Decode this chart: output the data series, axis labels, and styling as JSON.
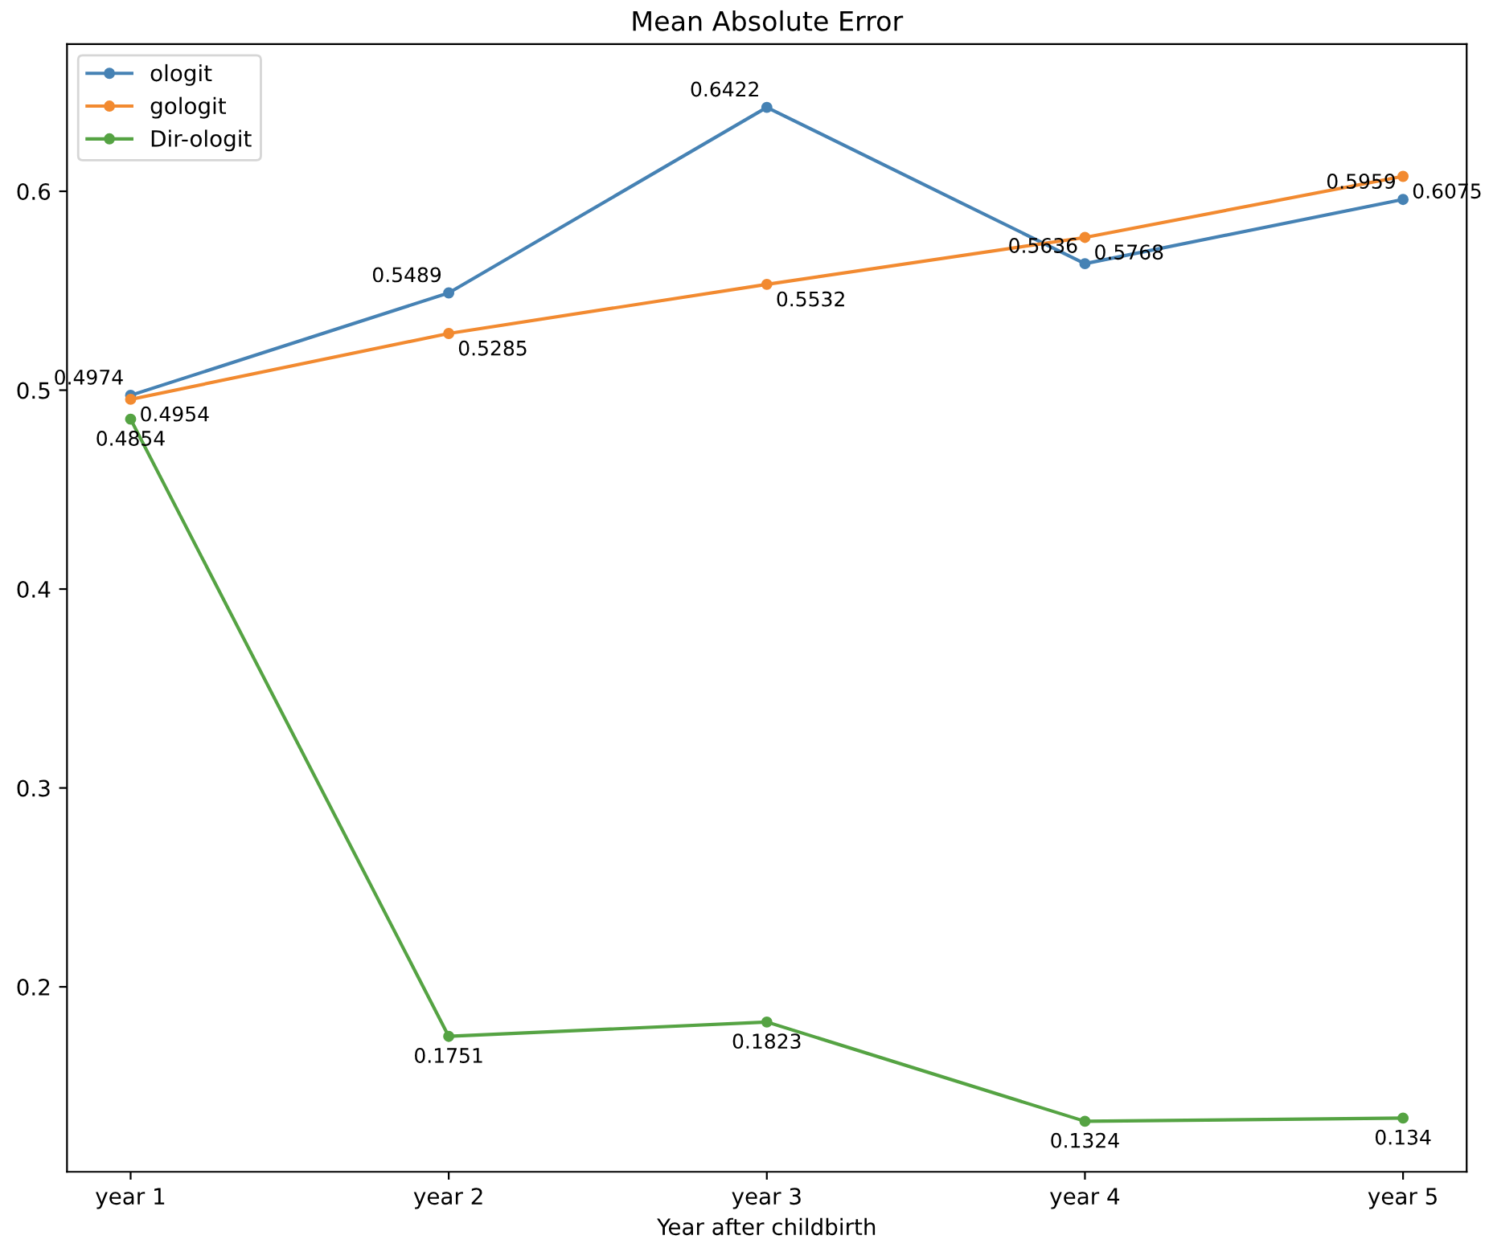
{
  "chart_data": {
    "type": "line",
    "title": "Mean Absolute Error",
    "xlabel": "Year after childbirth",
    "categories": [
      "year 1",
      "year 2",
      "year 3",
      "year 4",
      "year 5"
    ],
    "series": [
      {
        "name": "ologit",
        "color": "#4682b4",
        "values": [
          0.4974,
          0.5489,
          0.6422,
          0.5636,
          0.5959
        ]
      },
      {
        "name": "gologit",
        "color": "#f28a30",
        "values": [
          0.4954,
          0.5285,
          0.5532,
          0.5768,
          0.6075
        ]
      },
      {
        "name": "Dir-ologit",
        "color": "#55a343",
        "values": [
          0.4854,
          0.1751,
          0.1823,
          0.1324,
          0.134
        ]
      }
    ],
    "ylim": [
      0.107,
      0.674
    ],
    "yticks": [
      0.2,
      0.3,
      0.4,
      0.5,
      0.6
    ],
    "data_labels": true,
    "legend": "top left",
    "marker": "circle",
    "line_style": "solid",
    "grid": false
  }
}
